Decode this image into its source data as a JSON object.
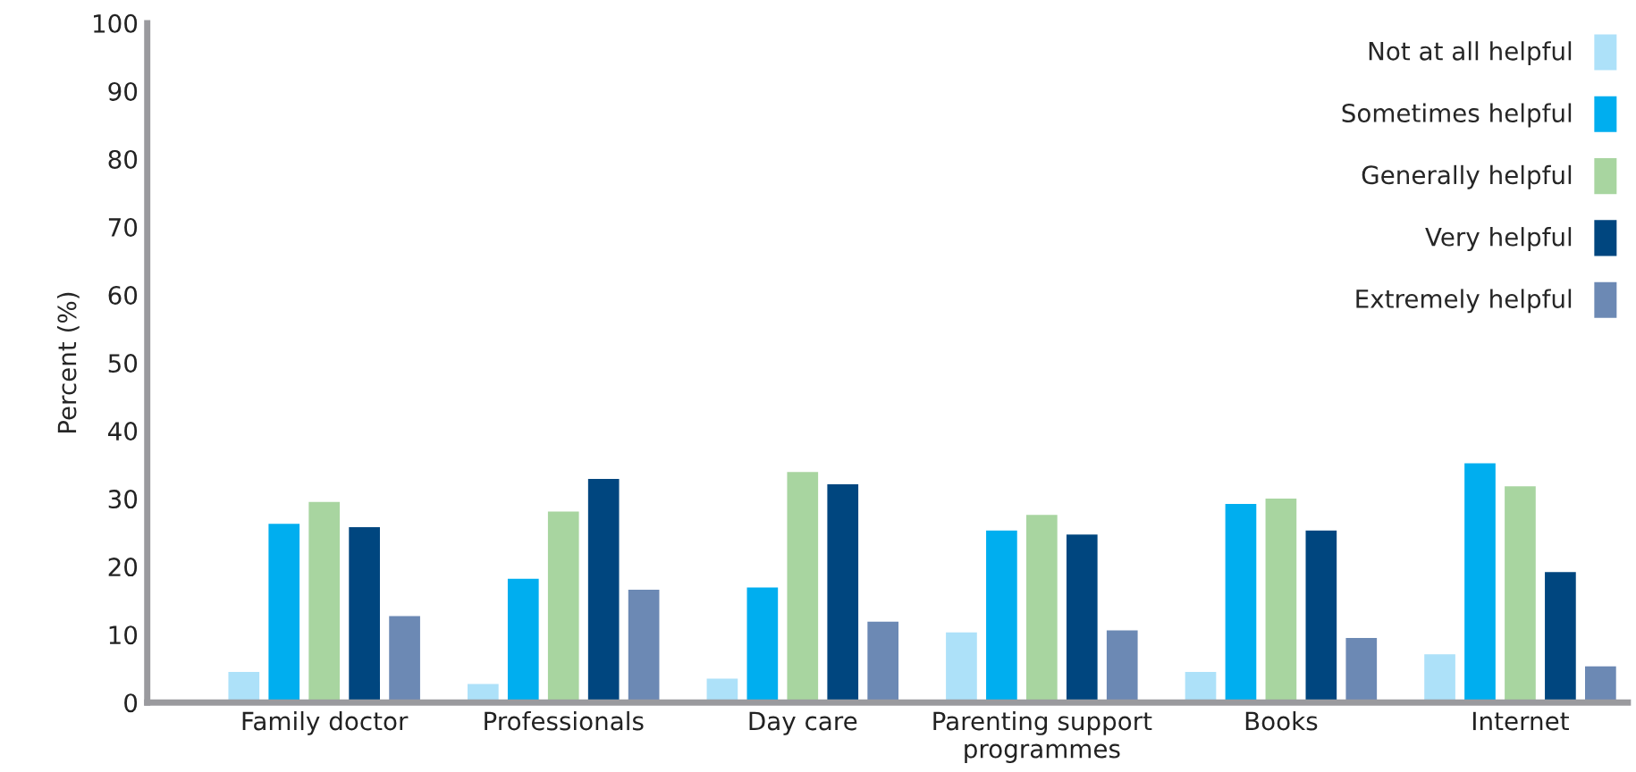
{
  "chart_data": {
    "type": "bar",
    "ylabel": "Percent (%)",
    "categories": [
      "Family doctor",
      "Professionals",
      "Day care",
      "Parenting support\nprogrammes",
      "Books",
      "Internet"
    ],
    "series": [
      {
        "name": "Not at all helpful",
        "color": "#ade1f9",
        "values": [
          4.7,
          2.9,
          3.7,
          10.5,
          4.7,
          7.3
        ]
      },
      {
        "name": "Sometimes helpful",
        "color": "#00aeef",
        "values": [
          26.5,
          18.4,
          17.1,
          25.5,
          29.4,
          35.4
        ]
      },
      {
        "name": "Generally helpful",
        "color": "#a8d5a0",
        "values": [
          29.7,
          28.3,
          34.1,
          27.8,
          30.2,
          32.0
        ]
      },
      {
        "name": "Very helpful",
        "color": "#00467f",
        "values": [
          26.0,
          33.1,
          32.3,
          24.9,
          25.5,
          19.4
        ]
      },
      {
        "name": "Extremely helpful",
        "color": "#6c89b4",
        "values": [
          12.9,
          16.8,
          12.1,
          10.8,
          9.7,
          5.5
        ]
      }
    ],
    "ylim": [
      0,
      100
    ],
    "yticks": [
      0,
      10,
      20,
      30,
      40,
      50,
      60,
      70,
      80,
      90,
      100
    ],
    "grid": false,
    "legend": "top right"
  }
}
